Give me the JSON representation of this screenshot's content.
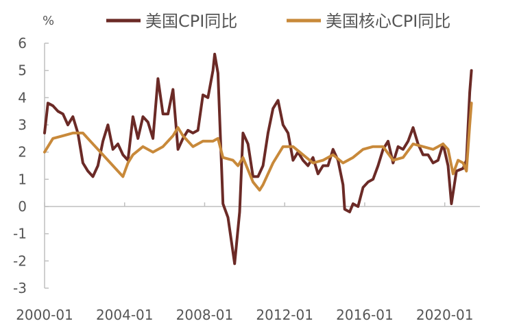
{
  "chart_data": {
    "type": "line",
    "title": "",
    "xlabel": "",
    "ylabel": "%",
    "ylim": [
      -3,
      6
    ],
    "yticks": [
      "6",
      "5",
      "4",
      "3",
      "2",
      "1",
      "0",
      "-1",
      "-2",
      "-3"
    ],
    "xticks": [
      "2000-01",
      "2004-01",
      "2008-01",
      "2012-01",
      "2016-01",
      "2020-01"
    ],
    "xlim": [
      "2000-01",
      "2021-06"
    ],
    "grid": false,
    "legend": "top",
    "series": [
      {
        "name": "美国CPI同比",
        "color": "#6b2a26",
        "x": [
          "2000-01",
          "2000-03",
          "2000-06",
          "2000-09",
          "2000-12",
          "2001-03",
          "2001-06",
          "2001-09",
          "2001-12",
          "2002-03",
          "2002-06",
          "2002-09",
          "2002-12",
          "2003-03",
          "2003-06",
          "2003-09",
          "2003-12",
          "2004-03",
          "2004-06",
          "2004-09",
          "2004-12",
          "2005-03",
          "2005-06",
          "2005-09",
          "2005-12",
          "2006-03",
          "2006-06",
          "2006-09",
          "2006-12",
          "2007-03",
          "2007-06",
          "2007-09",
          "2007-12",
          "2008-03",
          "2008-06",
          "2008-07",
          "2008-09",
          "2008-12",
          "2009-03",
          "2009-07",
          "2009-10",
          "2009-12",
          "2010-03",
          "2010-06",
          "2010-09",
          "2010-12",
          "2011-03",
          "2011-06",
          "2011-09",
          "2011-12",
          "2012-03",
          "2012-06",
          "2012-09",
          "2012-12",
          "2013-03",
          "2013-06",
          "2013-09",
          "2013-12",
          "2014-03",
          "2014-06",
          "2014-09",
          "2014-12",
          "2015-01",
          "2015-04",
          "2015-06",
          "2015-09",
          "2015-12",
          "2016-03",
          "2016-06",
          "2016-09",
          "2016-12",
          "2017-03",
          "2017-06",
          "2017-09",
          "2017-12",
          "2018-03",
          "2018-06",
          "2018-09",
          "2018-12",
          "2019-03",
          "2019-06",
          "2019-09",
          "2019-12",
          "2020-03",
          "2020-05",
          "2020-08",
          "2020-12",
          "2021-02",
          "2021-04",
          "2021-05"
        ],
        "values": [
          2.7,
          3.8,
          3.7,
          3.5,
          3.4,
          3.0,
          3.3,
          2.7,
          1.6,
          1.3,
          1.1,
          1.5,
          2.4,
          3.0,
          2.1,
          2.3,
          1.9,
          1.7,
          3.3,
          2.5,
          3.3,
          3.1,
          2.5,
          4.7,
          3.4,
          3.4,
          4.3,
          2.1,
          2.5,
          2.8,
          2.7,
          2.8,
          4.1,
          4.0,
          5.0,
          5.6,
          4.9,
          0.1,
          -0.4,
          -2.1,
          -0.2,
          2.7,
          2.3,
          1.1,
          1.1,
          1.5,
          2.7,
          3.6,
          3.9,
          3.0,
          2.7,
          1.7,
          2.0,
          1.7,
          1.5,
          1.8,
          1.2,
          1.5,
          1.5,
          2.1,
          1.7,
          0.8,
          -0.1,
          -0.2,
          0.1,
          0.0,
          0.7,
          0.9,
          1.0,
          1.5,
          2.1,
          2.4,
          1.6,
          2.2,
          2.1,
          2.4,
          2.9,
          2.3,
          1.9,
          1.9,
          1.6,
          1.7,
          2.3,
          1.5,
          0.1,
          1.3,
          1.4,
          1.7,
          4.2,
          5.0
        ]
      },
      {
        "name": "美国核心CPI同比",
        "color": "#c8893a",
        "x": [
          "2000-01",
          "2000-06",
          "2000-12",
          "2001-06",
          "2001-12",
          "2002-06",
          "2002-12",
          "2003-06",
          "2003-12",
          "2004-03",
          "2004-06",
          "2004-12",
          "2005-06",
          "2005-12",
          "2006-06",
          "2006-09",
          "2006-12",
          "2007-06",
          "2007-12",
          "2008-06",
          "2008-09",
          "2008-12",
          "2009-06",
          "2009-09",
          "2009-12",
          "2010-06",
          "2010-10",
          "2010-12",
          "2011-06",
          "2011-12",
          "2012-06",
          "2012-12",
          "2013-06",
          "2013-12",
          "2014-06",
          "2014-12",
          "2015-06",
          "2015-12",
          "2016-06",
          "2016-12",
          "2017-06",
          "2017-12",
          "2018-06",
          "2018-12",
          "2019-06",
          "2019-12",
          "2020-03",
          "2020-06",
          "2020-09",
          "2020-12",
          "2021-02",
          "2021-04",
          "2021-05"
        ],
        "values": [
          2.0,
          2.5,
          2.6,
          2.7,
          2.7,
          2.3,
          1.9,
          1.5,
          1.1,
          1.6,
          1.9,
          2.2,
          2.0,
          2.2,
          2.6,
          2.9,
          2.6,
          2.2,
          2.4,
          2.4,
          2.5,
          1.8,
          1.7,
          1.5,
          1.8,
          0.9,
          0.6,
          0.8,
          1.6,
          2.2,
          2.2,
          1.9,
          1.6,
          1.7,
          1.9,
          1.6,
          1.8,
          2.1,
          2.2,
          2.2,
          1.7,
          1.8,
          2.3,
          2.2,
          2.1,
          2.3,
          2.1,
          1.2,
          1.7,
          1.6,
          1.3,
          3.0,
          3.8
        ]
      }
    ]
  }
}
